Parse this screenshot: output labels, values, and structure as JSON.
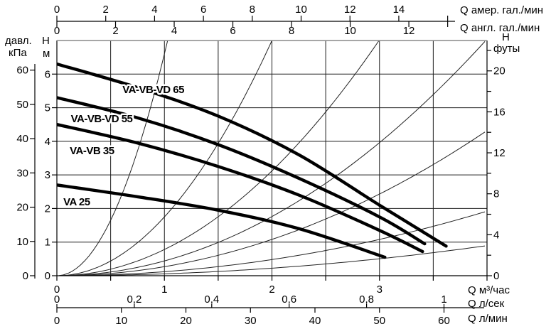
{
  "chart_data": {
    "type": "line",
    "title": "",
    "x_range_m3h": [
      0,
      4
    ],
    "y_range_m": [
      0,
      7
    ],
    "grid": {
      "x_step_m3h": 0.5,
      "y_step_m": 1,
      "grid_on": true
    },
    "axes": {
      "top_us_gpm": {
        "unit_label": "Q амер. гал./мин",
        "ticks": [
          0,
          2,
          4,
          6,
          8,
          10,
          12,
          14
        ],
        "unlabeled_tick": 16,
        "m3h_per_unit": 0.227125
      },
      "top_uk_gpm": {
        "unit_label": "Q англ. гал./мин",
        "ticks": [
          0,
          2,
          4,
          6,
          8,
          10,
          12
        ],
        "m3h_per_unit": 0.272766
      },
      "left_kpa": {
        "unit_label_line1": "давл.",
        "unit_label_line2": "кПа",
        "ticks": [
          0,
          10,
          20,
          30,
          40,
          50,
          60
        ],
        "m_per_unit": 0.10197
      },
      "left_m": {
        "unit_label_line1": "H",
        "unit_label_line2": "м",
        "ticks": [
          0,
          1,
          2,
          3,
          4,
          5,
          6
        ]
      },
      "right_ft": {
        "unit_label_line1": "H",
        "unit_label_line2": "футы",
        "labeled_ticks": [
          0,
          4,
          8,
          12,
          16,
          20
        ],
        "minor_ticks": [
          2,
          6,
          10,
          14,
          18,
          22
        ],
        "m_per_unit": 0.3048
      },
      "bottom_m3h": {
        "unit_label": "Q м³/час",
        "ticks": [
          0,
          1,
          2,
          3
        ],
        "minor_step": 0.5
      },
      "bottom_ls": {
        "unit_label": "Q л/сек",
        "ticks": [
          0,
          0.2,
          0.4,
          0.6,
          0.8,
          1
        ],
        "tick_labels": [
          "0",
          "0,2",
          "0,4",
          "0,6",
          "0,8",
          "1"
        ],
        "m3h_per_unit": 3.6
      },
      "bottom_lmin": {
        "unit_label": "Q л/мин",
        "ticks": [
          0,
          10,
          20,
          30,
          40,
          50,
          60
        ],
        "m3h_per_unit": 0.06
      }
    },
    "pump_curves": [
      {
        "name": "VA-VB-VD 65",
        "points_q_h": [
          [
            0,
            6.3
          ],
          [
            0.75,
            5.6
          ],
          [
            1.5,
            4.75
          ],
          [
            2.25,
            3.6
          ],
          [
            3.0,
            2.1
          ],
          [
            3.62,
            0.88
          ]
        ],
        "label_q": 0.61,
        "label_h": 5.43
      },
      {
        "name": "VA-VB-VD 55",
        "points_q_h": [
          [
            0,
            5.3
          ],
          [
            0.75,
            4.7
          ],
          [
            1.5,
            3.9
          ],
          [
            2.25,
            2.9
          ],
          [
            3.0,
            1.75
          ],
          [
            3.42,
            0.95
          ]
        ],
        "label_q": 0.13,
        "label_h": 4.57
      },
      {
        "name": "VA-VB 35",
        "points_q_h": [
          [
            0,
            4.5
          ],
          [
            0.75,
            3.95
          ],
          [
            1.5,
            3.25
          ],
          [
            2.25,
            2.4
          ],
          [
            3.0,
            1.35
          ],
          [
            3.4,
            0.72
          ]
        ],
        "label_q": 0.12,
        "label_h": 3.62
      },
      {
        "name": "VA 25",
        "points_q_h": [
          [
            0,
            2.7
          ],
          [
            0.75,
            2.35
          ],
          [
            1.5,
            1.95
          ],
          [
            2.25,
            1.4
          ],
          [
            3.05,
            0.55
          ]
        ],
        "label_q": 0.06,
        "label_h": 2.09
      }
    ],
    "system_curves": {
      "description": "thin unlabeled system-resistance parabolas H = k·Q²",
      "k_h_per_q2": [
        6.6,
        1.75,
        0.78,
        0.44,
        0.27,
        0.12,
        0.056
      ]
    }
  },
  "colors": {
    "background": "#ffffff",
    "grid": "#1c1c1c",
    "axis": "#000000",
    "pump_curve": "#000000",
    "system_curve": "#222222",
    "plot_top_border": "#999999"
  }
}
